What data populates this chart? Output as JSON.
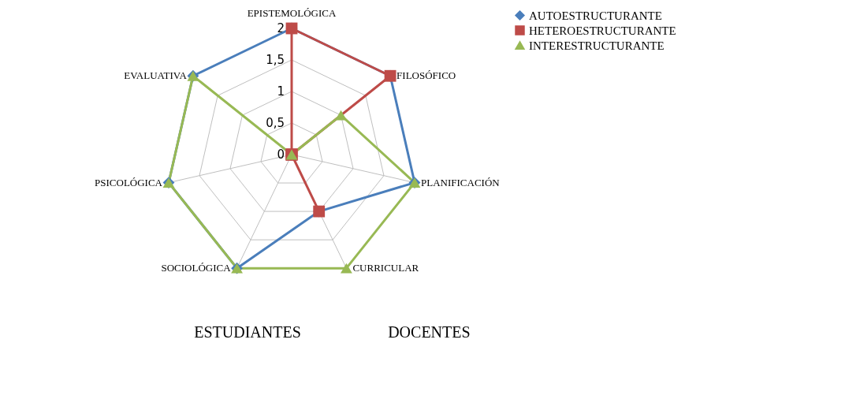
{
  "chart_data": {
    "type": "radar",
    "categories": [
      "EPISTEMOLÓGICA",
      "FILOSÓFICO",
      "PLANIFICACIÓN",
      "CURRICULAR",
      "SOCIOLÓGICA",
      "PSICOLÓGICA",
      "EVALUATIVA"
    ],
    "series": [
      {
        "name": "AUTOESTRUCTURANTE",
        "color": "#4a7ebb",
        "marker": "diamond",
        "values": [
          2,
          2,
          2,
          1,
          2,
          2,
          2
        ]
      },
      {
        "name": "HETEROESTRUCTURANTE",
        "color": "#be4b48",
        "marker": "square",
        "values": [
          2,
          2,
          0,
          1,
          0,
          0,
          0
        ]
      },
      {
        "name": "INTERESTRUCTURANTE",
        "color": "#98b954",
        "marker": "triangle",
        "values": [
          0,
          1,
          2,
          2,
          2,
          2,
          2
        ]
      }
    ],
    "ylim": [
      0,
      2
    ],
    "yticks": [
      {
        "value": 0,
        "label": "0"
      },
      {
        "value": 0.5,
        "label": "0,5"
      },
      {
        "value": 1,
        "label": "1"
      },
      {
        "value": 1.5,
        "label": "1,5"
      },
      {
        "value": 2,
        "label": "2"
      }
    ],
    "grid": true,
    "legend": "right",
    "annotations": [
      "ESTUDIANTES",
      "DOCENTES"
    ]
  }
}
